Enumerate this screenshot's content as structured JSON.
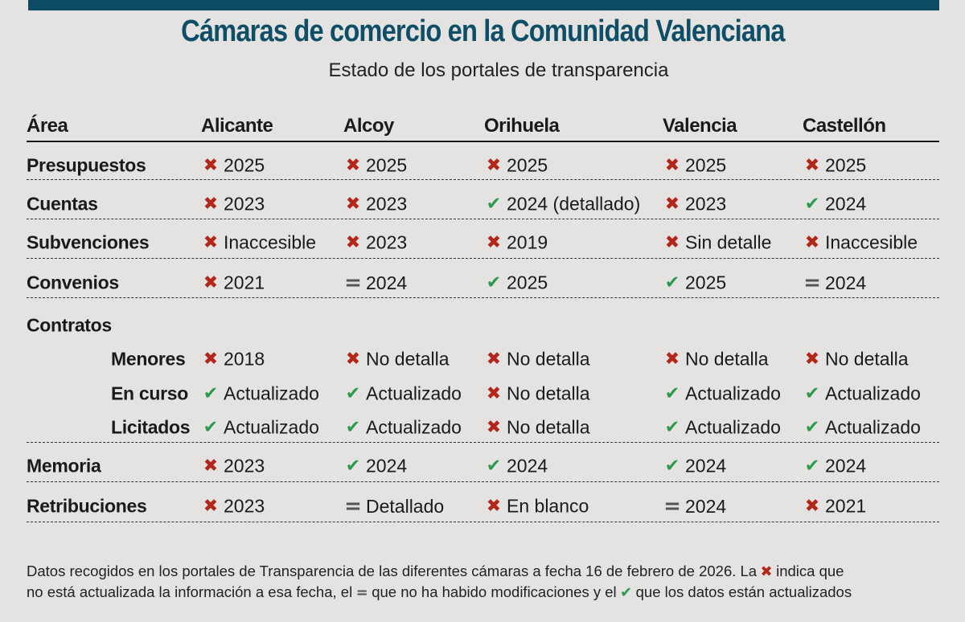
{
  "title": "Cámaras de comercio en la Comunidad Valenciana",
  "subtitle": "Estado de los portales de transparencia",
  "colors": {
    "header_bar": "#0e4c63",
    "title": "#0f4e67",
    "not_updated": "#b3271b",
    "updated": "#2b9a4c",
    "no_changes": "#555555",
    "background": "#e5e3e1"
  },
  "icons": {
    "x": "cross-icon",
    "ok": "check-icon",
    "eq": "equals-icon"
  },
  "chart_data": {
    "type": "table",
    "columns": [
      "Área",
      "Alicante",
      "Alcoy",
      "Orihuela",
      "Valencia",
      "Castellón"
    ],
    "rows": [
      {
        "area": "Presupuestos",
        "cells": [
          [
            "x",
            "2025"
          ],
          [
            "x",
            "2025"
          ],
          [
            "x",
            "2025"
          ],
          [
            "x",
            "2025"
          ],
          [
            "x",
            "2025"
          ]
        ]
      },
      {
        "area": "Cuentas",
        "cells": [
          [
            "x",
            "2023"
          ],
          [
            "x",
            "2023"
          ],
          [
            "ok",
            "2024 (detallado)"
          ],
          [
            "x",
            "2023"
          ],
          [
            "ok",
            "2024"
          ]
        ]
      },
      {
        "area": "Subvenciones",
        "cells": [
          [
            "x",
            "Inaccesible"
          ],
          [
            "x",
            "2023"
          ],
          [
            "x",
            "2019"
          ],
          [
            "x",
            "Sin detalle"
          ],
          [
            "x",
            "Inaccesible"
          ]
        ]
      },
      {
        "area": "Convenios",
        "cells": [
          [
            "x",
            "2021"
          ],
          [
            "eq",
            "2024"
          ],
          [
            "ok",
            "2025"
          ],
          [
            "ok",
            "2025"
          ],
          [
            "eq",
            "2024"
          ]
        ]
      },
      {
        "area": "Contratos",
        "cells": []
      },
      {
        "area": "Menores",
        "sub": true,
        "cells": [
          [
            "x",
            "2018"
          ],
          [
            "x",
            "No detalla"
          ],
          [
            "x",
            "No detalla"
          ],
          [
            "x",
            "No detalla"
          ],
          [
            "x",
            "No detalla"
          ]
        ]
      },
      {
        "area": "En curso",
        "sub": true,
        "cells": [
          [
            "ok",
            "Actualizado"
          ],
          [
            "ok",
            "Actualizado"
          ],
          [
            "x",
            "No detalla"
          ],
          [
            "ok",
            "Actualizado"
          ],
          [
            "ok",
            "Actualizado"
          ]
        ]
      },
      {
        "area": "Licitados",
        "sub": true,
        "cells": [
          [
            "ok",
            "Actualizado"
          ],
          [
            "ok",
            "Actualizado"
          ],
          [
            "x",
            "No detalla"
          ],
          [
            "ok",
            "Actualizado"
          ],
          [
            "ok",
            "Actualizado"
          ]
        ]
      },
      {
        "area": "Memoria",
        "cells": [
          [
            "x",
            "2023"
          ],
          [
            "ok",
            "2024"
          ],
          [
            "ok",
            "2024"
          ],
          [
            "ok",
            "2024"
          ],
          [
            "ok",
            "2024"
          ]
        ]
      },
      {
        "area": "Retribuciones",
        "cells": [
          [
            "x",
            "2023"
          ],
          [
            "eq",
            "Detallado"
          ],
          [
            "x",
            "En blanco"
          ],
          [
            "eq",
            "2024"
          ],
          [
            "x",
            "2021"
          ]
        ]
      }
    ],
    "legend": {
      "x": "no está actualizada la información a esa fecha",
      "eq": "no ha habido modificaciones",
      "ok": "los datos están actualizados"
    }
  },
  "footnote": {
    "line1_a": "Datos recogidos en los portales de Transparencia de las diferentes cámaras a fecha 16 de febrero de 2026. La",
    "line1_b": "indica que",
    "line2_a": "no está actualizada la información a esa fecha, el",
    "line2_b": "que no ha habido modificaciones y el",
    "line2_c": "que los datos están actualizados"
  }
}
